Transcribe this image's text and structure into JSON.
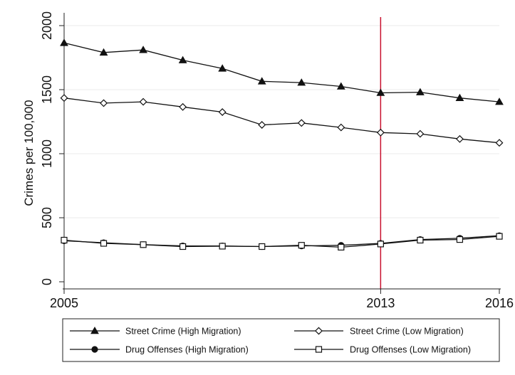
{
  "chart_data": {
    "type": "line",
    "title": "",
    "xlabel": "",
    "ylabel": "Crimes per 100,000",
    "x": [
      2005,
      2006,
      2007,
      2008,
      2009,
      2010,
      2011,
      2012,
      2013,
      2014,
      2015,
      2016
    ],
    "x_ticks": [
      "2005",
      "2013",
      "2016"
    ],
    "y_ticks": [
      "0",
      "500",
      "1000",
      "1500",
      "2000"
    ],
    "xlim": [
      2005,
      2016
    ],
    "ylim": [
      0,
      2000
    ],
    "grid": true,
    "reference_line": {
      "x": 2013,
      "color": "#c8102e"
    },
    "legend_position": "bottom",
    "series": [
      {
        "name": "Street Crime (High Migration)",
        "marker": "triangle",
        "values": [
          1865,
          1790,
          1810,
          1730,
          1665,
          1565,
          1555,
          1525,
          1475,
          1480,
          1435,
          1405
        ]
      },
      {
        "name": "Street Crime (Low Migration)",
        "marker": "diamond",
        "values": [
          1435,
          1395,
          1405,
          1365,
          1325,
          1225,
          1240,
          1205,
          1165,
          1155,
          1115,
          1085
        ]
      },
      {
        "name": "Drug Offenses (High Migration)",
        "marker": "circle",
        "values": [
          320,
          305,
          290,
          280,
          280,
          275,
          280,
          285,
          300,
          330,
          340,
          360
        ]
      },
      {
        "name": "Drug Offenses (Low Migration)",
        "marker": "square",
        "values": [
          325,
          300,
          290,
          275,
          278,
          275,
          285,
          270,
          295,
          325,
          330,
          355
        ]
      }
    ]
  }
}
